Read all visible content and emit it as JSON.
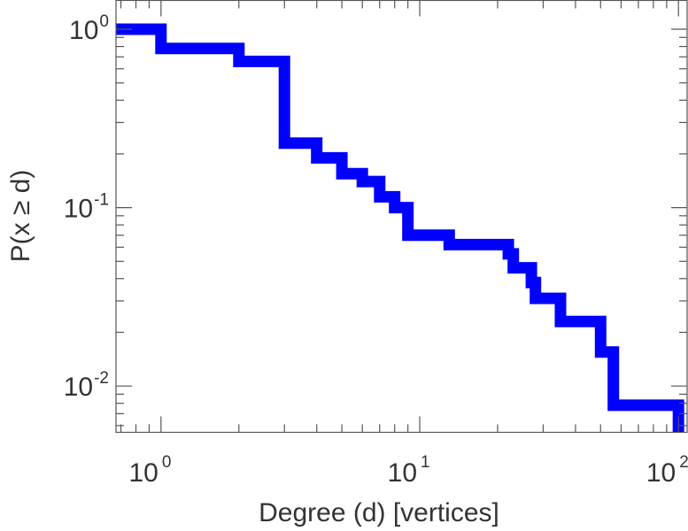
{
  "chart_data": {
    "type": "line",
    "title": "",
    "xlabel": "Degree (d) [vertices]",
    "ylabel": "P(x ≥ d)",
    "xscale": "log",
    "yscale": "log",
    "xlim": [
      0.67,
      108
    ],
    "ylim": [
      0.0055,
      1.45
    ],
    "x_ticks": [
      {
        "base": "10",
        "exp": "0"
      },
      {
        "base": "10",
        "exp": "1"
      },
      {
        "base": "10",
        "exp": "2"
      }
    ],
    "y_ticks": [
      {
        "base": "10",
        "exp": "0"
      },
      {
        "base": "10",
        "exp": "-1"
      },
      {
        "base": "10",
        "exp": "-2"
      }
    ],
    "grid": false,
    "line_color": "#0000ff",
    "series": [
      {
        "step": true,
        "x": [
          0.67,
          1,
          2,
          3,
          4,
          5,
          6,
          7,
          8,
          9,
          13,
          22,
          23,
          27,
          28,
          35,
          50,
          56,
          100,
          100
        ],
        "y": [
          1.0,
          0.78,
          0.66,
          0.23,
          0.19,
          0.155,
          0.14,
          0.115,
          0.1,
          0.07,
          0.062,
          0.055,
          0.046,
          0.038,
          0.031,
          0.023,
          0.0155,
          0.0078,
          0.0078,
          0.0055
        ]
      }
    ]
  }
}
